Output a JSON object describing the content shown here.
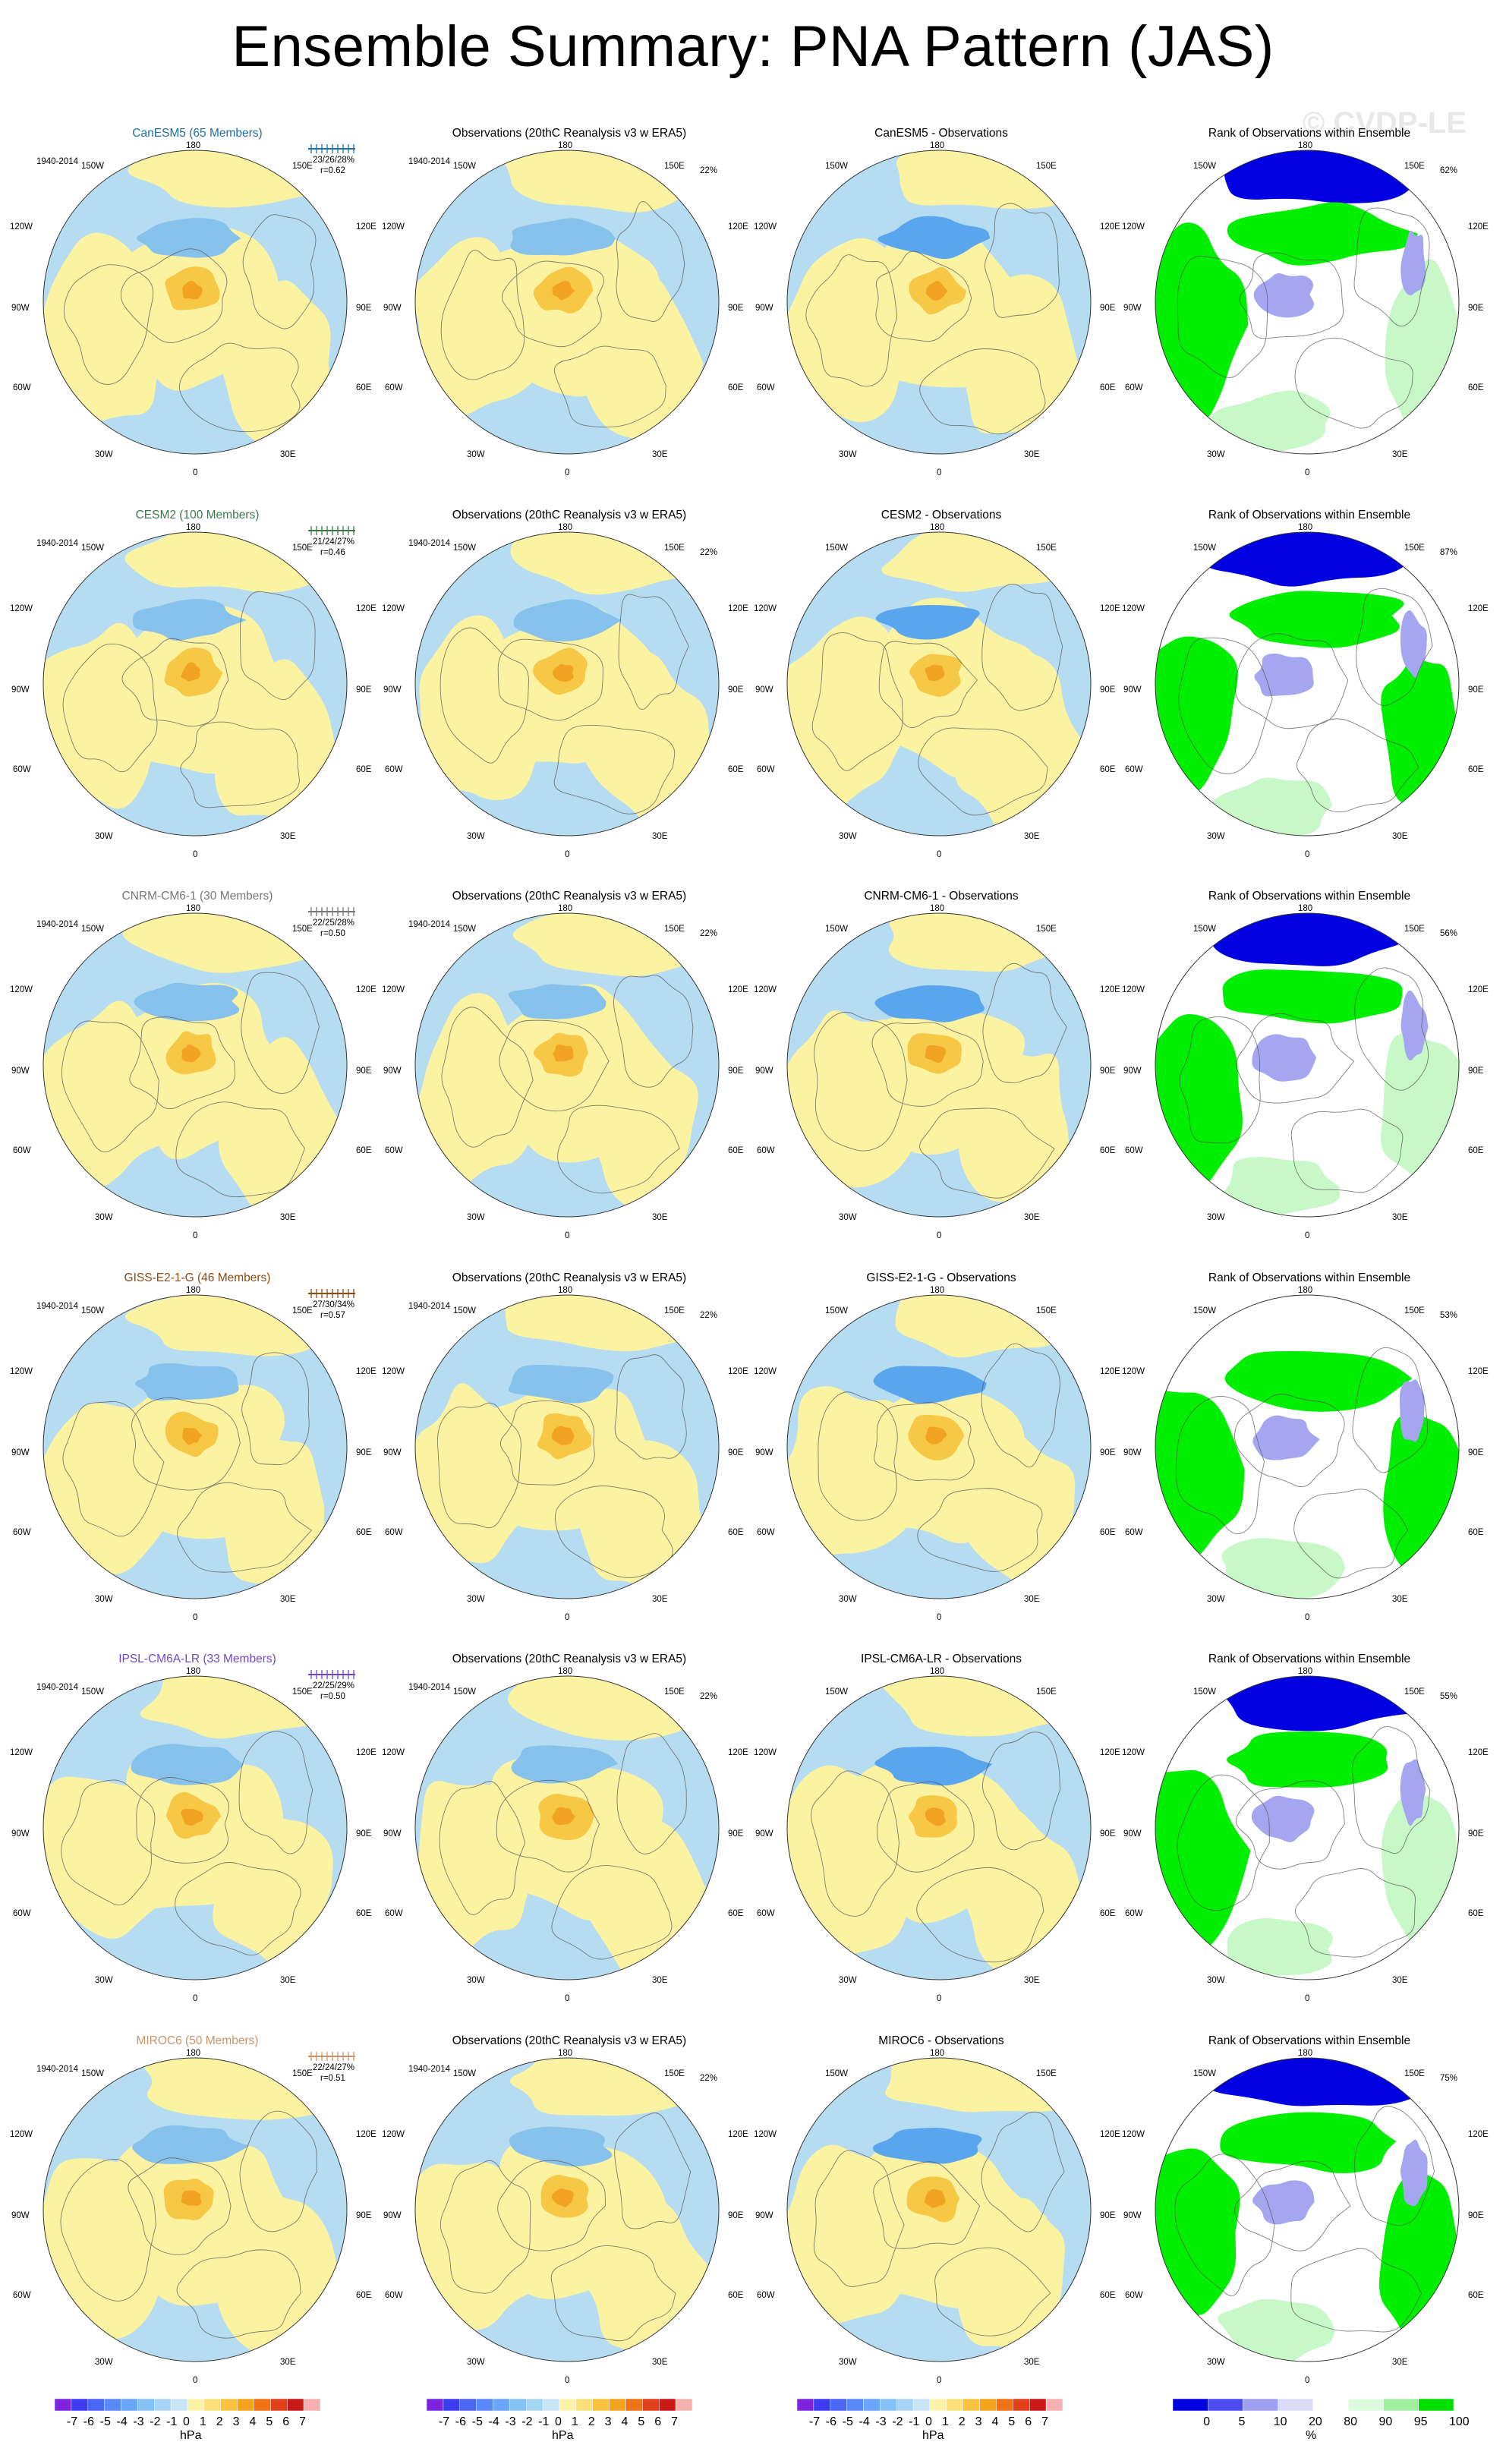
{
  "title": "Ensemble Summary: PNA Pattern (JAS)",
  "watermark": "© CVDP-LE",
  "period": "1940-2014",
  "lon_labels": {
    "top": "180",
    "upper_left": "150W",
    "upper_right": "150E",
    "left_upper": "120W",
    "right_upper": "120E",
    "left": "90W",
    "right": "90E",
    "left_lower": "60W",
    "right_lower": "60E",
    "lower_left": "30W",
    "lower_right": "30E",
    "bottom": "0"
  },
  "obs_title": "Observations (20thC Reanalysis v3 w ERA5)",
  "obs_pct": "22%",
  "rank_title": "Rank of Observations within Ensemble",
  "rows": [
    {
      "model_title": "CanESM5 (65 Members)",
      "model_color": "#1f6fa0",
      "stats": "23/26/28%",
      "r": "r=0.62",
      "diff_title": "CanESM5 - Observations",
      "rank_pct": "62%"
    },
    {
      "model_title": "CESM2 (100 Members)",
      "model_color": "#3a7a4a",
      "stats": "21/24/27%",
      "r": "r=0.46",
      "diff_title": "CESM2 - Observations",
      "rank_pct": "87%"
    },
    {
      "model_title": "CNRM-CM6-1 (30 Members)",
      "model_color": "#777777",
      "stats": "22/25/28%",
      "r": "r=0.50",
      "diff_title": "CNRM-CM6-1 - Observations",
      "rank_pct": "56%"
    },
    {
      "model_title": "GISS-E2-1-G (46 Members)",
      "model_color": "#8a4a14",
      "stats": "27/30/34%",
      "r": "r=0.57",
      "diff_title": "GISS-E2-1-G - Observations",
      "rank_pct": "53%"
    },
    {
      "model_title": "IPSL-CM6A-LR (33 Members)",
      "model_color": "#7048c8",
      "stats": "22/25/29%",
      "r": "r=0.50",
      "diff_title": "IPSL-CM6A-LR - Observations",
      "rank_pct": "55%"
    },
    {
      "model_title": "MIROC6 (50 Members)",
      "model_color": "#c8946a",
      "stats": "22/24/27%",
      "r": "r=0.51",
      "diff_title": "MIROC6 - Observations",
      "rank_pct": "75%"
    }
  ],
  "colorbar_hpa": {
    "ticks": [
      "-7",
      "-6",
      "-5",
      "-4",
      "-3",
      "-2",
      "-1",
      "0",
      "1",
      "2",
      "3",
      "4",
      "5",
      "6",
      "7"
    ],
    "unit": "hPa",
    "colors": [
      "#7d22e0",
      "#3b3bf0",
      "#4a66f5",
      "#5a88f6",
      "#6aa6f8",
      "#86c2f4",
      "#a6d6f3",
      "#c8e6f5",
      "#fdf3a8",
      "#fbe07a",
      "#f8c440",
      "#f5a21c",
      "#f07416",
      "#e0401a",
      "#c81818",
      "#f5b0b0"
    ]
  },
  "colorbar_rank": {
    "ticks": [
      "0",
      "5",
      "10",
      "20",
      "80",
      "90",
      "95",
      "100"
    ],
    "unit": "%",
    "colors": [
      "#0000e0",
      "#4a4af0",
      "#a0a0f0",
      "#dcdcfa",
      "#ffffff",
      "#dcfadc",
      "#a0f0a0",
      "#00e000"
    ]
  },
  "map_colors": {
    "ocean_neg": "#b6dcf2",
    "pos": "#fbf2a2",
    "pos2": "#f7c845",
    "pos3": "#f2a324",
    "neg2": "#86c2ec",
    "neg3": "#5aa6ee",
    "rank_blue": "#0000e0",
    "rank_lblue": "#a6a6f0",
    "rank_green": "#00ef00",
    "rank_lgreen": "#c8f8c8",
    "land": "#555555"
  }
}
